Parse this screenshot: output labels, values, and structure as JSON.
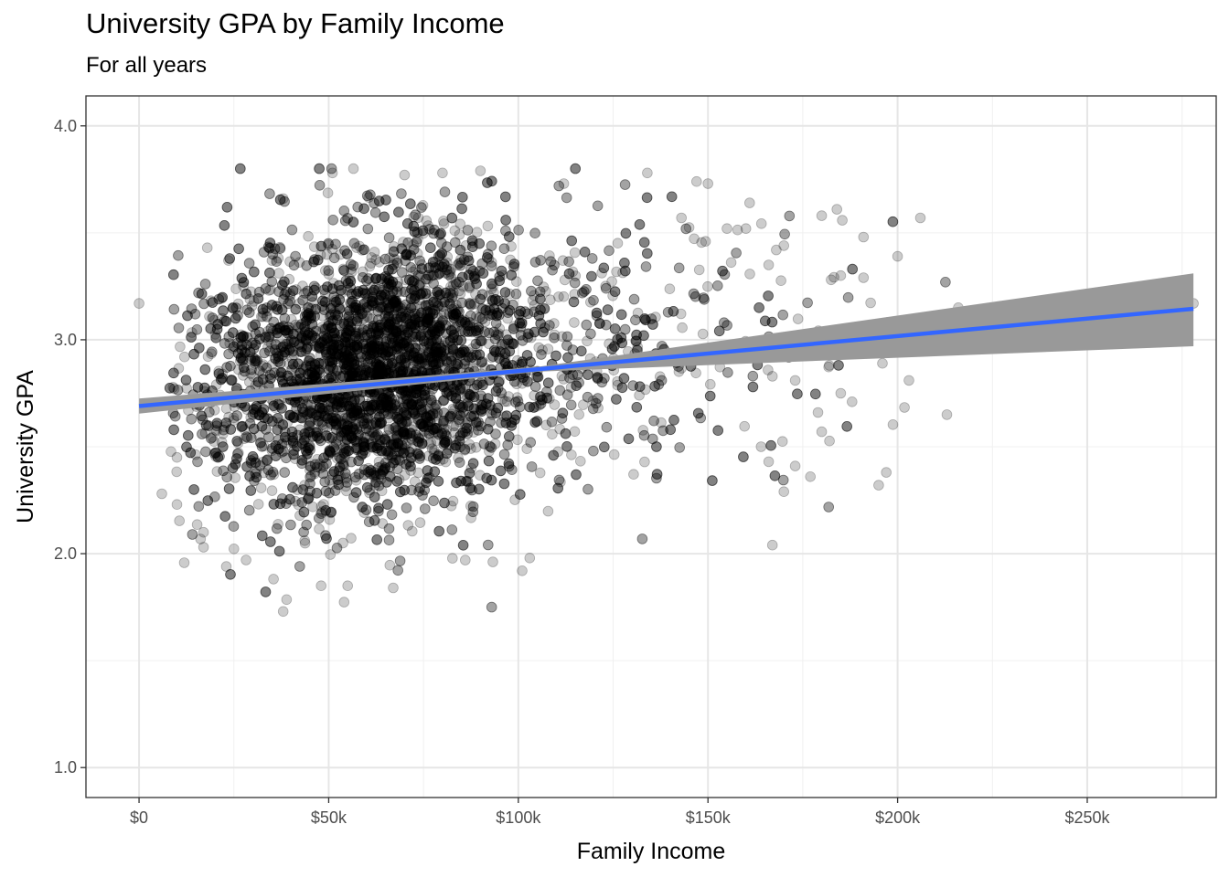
{
  "chart_data": {
    "type": "scatter",
    "title": "University GPA by Family Income",
    "subtitle": "For all years",
    "xlabel": "Family Income",
    "ylabel": "University GPA",
    "xlim": [
      -14000,
      284000
    ],
    "ylim": [
      0.86,
      4.14
    ],
    "x_ticks": [
      0,
      50000,
      100000,
      150000,
      200000,
      250000
    ],
    "x_tick_labels": [
      "$0",
      "$50k",
      "$100k",
      "$150k",
      "$200k",
      "$250k"
    ],
    "y_ticks": [
      1.0,
      2.0,
      3.0,
      4.0
    ],
    "y_tick_labels": [
      "1.0",
      "2.0",
      "3.0",
      "4.0"
    ],
    "grid": true,
    "points": {
      "color": "#000000",
      "opacity": 0.2,
      "n_approx": 6000,
      "dense_core": {
        "x_center": 60000,
        "x_sd": 22000,
        "y_center": 2.85,
        "y_sd": 0.32
      },
      "sample_points": [
        [
          0,
          3.17
        ],
        [
          6000,
          2.28
        ],
        [
          10000,
          2.23
        ],
        [
          10000,
          2.45
        ],
        [
          12000,
          2.92
        ],
        [
          13000,
          2.67
        ],
        [
          17000,
          2.03
        ],
        [
          17000,
          2.1
        ],
        [
          18000,
          3.43
        ],
        [
          23000,
          1.94
        ],
        [
          38000,
          1.73
        ],
        [
          38000,
          3.66
        ],
        [
          51000,
          3.78
        ],
        [
          70000,
          3.77
        ],
        [
          80000,
          3.78
        ],
        [
          90000,
          3.79
        ],
        [
          112000,
          3.73
        ],
        [
          134000,
          3.78
        ],
        [
          147000,
          3.74
        ],
        [
          150000,
          3.73
        ],
        [
          161000,
          3.64
        ],
        [
          180000,
          3.58
        ],
        [
          184000,
          3.61
        ],
        [
          191000,
          3.48
        ],
        [
          200000,
          3.39
        ],
        [
          206000,
          3.57
        ],
        [
          213000,
          2.65
        ],
        [
          203000,
          2.81
        ],
        [
          197000,
          2.38
        ],
        [
          195000,
          2.32
        ],
        [
          196000,
          2.89
        ],
        [
          188000,
          2.71
        ],
        [
          185000,
          2.75
        ],
        [
          182000,
          2.88
        ],
        [
          180000,
          2.57
        ],
        [
          179000,
          2.66
        ],
        [
          177000,
          2.36
        ],
        [
          173000,
          2.41
        ],
        [
          170000,
          2.29
        ],
        [
          167000,
          2.04
        ],
        [
          166000,
          2.43
        ],
        [
          164000,
          2.5
        ],
        [
          173000,
          2.81
        ],
        [
          175000,
          2.95
        ],
        [
          185000,
          3.3
        ],
        [
          191000,
          3.29
        ],
        [
          216000,
          3.15
        ],
        [
          278000,
          3.17
        ],
        [
          48000,
          1.85
        ],
        [
          55000,
          1.85
        ],
        [
          67000,
          1.84
        ],
        [
          86000,
          1.97
        ],
        [
          101000,
          1.92
        ],
        [
          103000,
          1.98
        ],
        [
          143000,
          3.57
        ],
        [
          155000,
          3.52
        ],
        [
          170000,
          3.44
        ],
        [
          168000,
          3.42
        ],
        [
          166000,
          3.35
        ],
        [
          160000,
          3.52
        ]
      ]
    },
    "trend_line": {
      "color": "#3366ff",
      "start": [
        0,
        2.69
      ],
      "end": [
        278000,
        3.145
      ],
      "ci_start": [
        2.655,
        2.725
      ],
      "ci_end": [
        2.97,
        3.31
      ],
      "ci_color": "#999999"
    }
  }
}
